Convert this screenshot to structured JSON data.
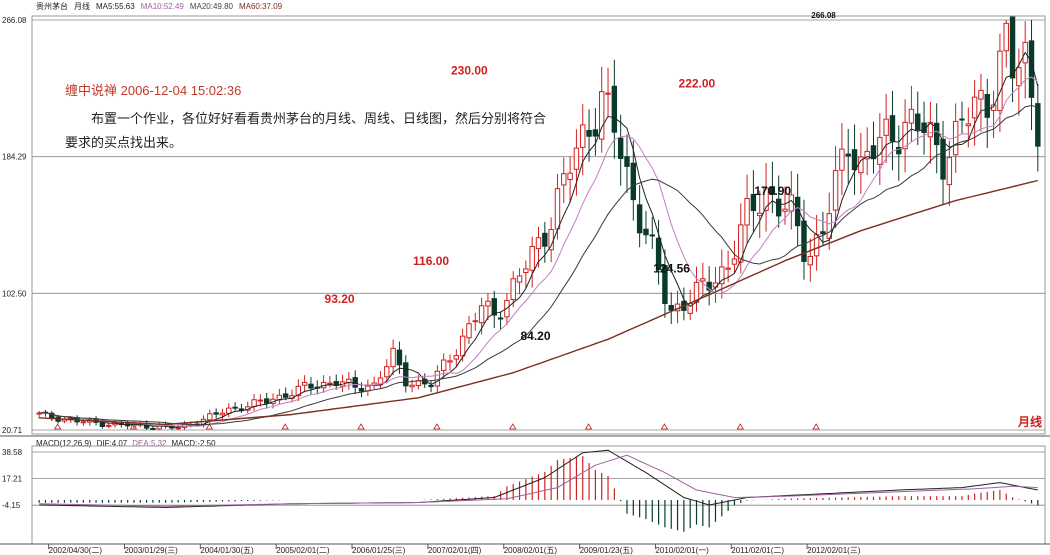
{
  "main_header": {
    "symbol": "贵州茅台",
    "period": "月线",
    "ma5": "MA5:55.63",
    "ma10": "MA10:52.49",
    "ma20": "MA20:49.80",
    "ma60": "MA60:37.09"
  },
  "macd_header": {
    "name": "MACD(12,26,9)",
    "dif": "DIF:4.07",
    "dea": "DEA:5.32",
    "macd": "MACD:-2.50"
  },
  "note": {
    "title": "缠中说禅 2006-12-04 15:02:36",
    "body": "布置一个作业，各位好好看看贵州茅台的月线、周线、日线图，然后分别将符合要求的买点找出来。"
  },
  "period_label": "月线",
  "colors": {
    "up": "#d02020",
    "down": "#0a3a2a",
    "ma5": "#222222",
    "ma10": "#c080c0",
    "ma20": "#3a3a3a",
    "ma60": "#7a3020",
    "annotation_red": "#d02020",
    "annotation_black": "#111111",
    "dif": "#222222",
    "dea": "#a060a0"
  },
  "chart_data": {
    "type": "candlestick",
    "y_ticks": [
      "266.08",
      "184.29",
      "102.50",
      "20.71"
    ],
    "macd_ticks": [
      "38.58",
      "17.21",
      "-4.15"
    ],
    "x_labels": [
      "2002/04/30(二)",
      "2003/01/29(三)",
      "2004/01/30(五)",
      "2005/02/01(二)",
      "2006/01/25(三)",
      "2007/02/01(四)",
      "2008/02/01(五)",
      "2009/01/23(五)",
      "2010/02/01(一)",
      "2011/02/01(二)",
      "2012/02/01(三)"
    ],
    "annotations": [
      {
        "text": "266.08",
        "x": "2012/09",
        "y": 266.08,
        "color": "black"
      },
      {
        "text": "230.00",
        "x": "2007/12",
        "y": 230.0,
        "color": "red"
      },
      {
        "text": "222.00",
        "x": "2010/12",
        "y": 222.0,
        "color": "red"
      },
      {
        "text": "170.90",
        "x": "2011/12",
        "y": 170.9,
        "color": "black"
      },
      {
        "text": "124.56",
        "x": "2010/08",
        "y": 124.56,
        "color": "black"
      },
      {
        "text": "116.00",
        "x": "2007/06",
        "y": 116.0,
        "color": "red"
      },
      {
        "text": "93.20",
        "x": "2006/04",
        "y": 93.2,
        "color": "red"
      },
      {
        "text": "84.20",
        "x": "2008/11",
        "y": 84.2,
        "color": "black"
      }
    ],
    "price_waypoints": [
      [
        0,
        30
      ],
      [
        6,
        26
      ],
      [
        12,
        24
      ],
      [
        18,
        23
      ],
      [
        22,
        22
      ],
      [
        26,
        27
      ],
      [
        30,
        33
      ],
      [
        36,
        38
      ],
      [
        42,
        46
      ],
      [
        47,
        50
      ],
      [
        50,
        46
      ],
      [
        53,
        48
      ],
      [
        56,
        65
      ],
      [
        58,
        50
      ],
      [
        62,
        48
      ],
      [
        66,
        70
      ],
      [
        70,
        94
      ],
      [
        72,
        90
      ],
      [
        74,
        100
      ],
      [
        78,
        125
      ],
      [
        81,
        148
      ],
      [
        84,
        178
      ],
      [
        87,
        205
      ],
      [
        89,
        218
      ],
      [
        91,
        200
      ],
      [
        94,
        160
      ],
      [
        97,
        128
      ],
      [
        99,
        100
      ],
      [
        100,
        92
      ],
      [
        103,
        100
      ],
      [
        106,
        108
      ],
      [
        109,
        120
      ],
      [
        112,
        148
      ],
      [
        115,
        165
      ],
      [
        117,
        155
      ],
      [
        119,
        150
      ],
      [
        121,
        130
      ],
      [
        122,
        128
      ],
      [
        124,
        140
      ],
      [
        127,
        180
      ],
      [
        128,
        195
      ],
      [
        130,
        180
      ],
      [
        134,
        195
      ],
      [
        137,
        205
      ],
      [
        140,
        200
      ],
      [
        143,
        185
      ],
      [
        145,
        195
      ],
      [
        148,
        215
      ],
      [
        150,
        220
      ],
      [
        152,
        238
      ],
      [
        153,
        250
      ],
      [
        154,
        235
      ],
      [
        156,
        245
      ],
      [
        158,
        205
      ]
    ],
    "ma60_waypoints": [
      [
        0,
        28
      ],
      [
        20,
        24
      ],
      [
        40,
        30
      ],
      [
        60,
        40
      ],
      [
        75,
        55
      ],
      [
        90,
        75
      ],
      [
        105,
        100
      ],
      [
        118,
        122
      ],
      [
        130,
        140
      ],
      [
        145,
        158
      ],
      [
        158,
        170
      ]
    ],
    "macd_dif_waypoints": [
      [
        0,
        -4
      ],
      [
        20,
        -6
      ],
      [
        40,
        -3
      ],
      [
        60,
        -2
      ],
      [
        72,
        2
      ],
      [
        80,
        18
      ],
      [
        86,
        38
      ],
      [
        90,
        40
      ],
      [
        96,
        22
      ],
      [
        102,
        2
      ],
      [
        106,
        -4
      ],
      [
        112,
        2
      ],
      [
        120,
        4
      ],
      [
        128,
        6
      ],
      [
        136,
        8
      ],
      [
        146,
        10
      ],
      [
        152,
        14
      ],
      [
        158,
        8
      ]
    ],
    "macd_dea_waypoints": [
      [
        0,
        -3
      ],
      [
        20,
        -5
      ],
      [
        40,
        -3
      ],
      [
        60,
        -2
      ],
      [
        74,
        1
      ],
      [
        82,
        10
      ],
      [
        88,
        28
      ],
      [
        93,
        36
      ],
      [
        99,
        22
      ],
      [
        104,
        8
      ],
      [
        110,
        2
      ],
      [
        118,
        3
      ],
      [
        128,
        5
      ],
      [
        138,
        7
      ],
      [
        148,
        9
      ],
      [
        154,
        11
      ],
      [
        158,
        10
      ]
    ],
    "months": 159,
    "ylim": [
      20.71,
      266.08
    ]
  }
}
